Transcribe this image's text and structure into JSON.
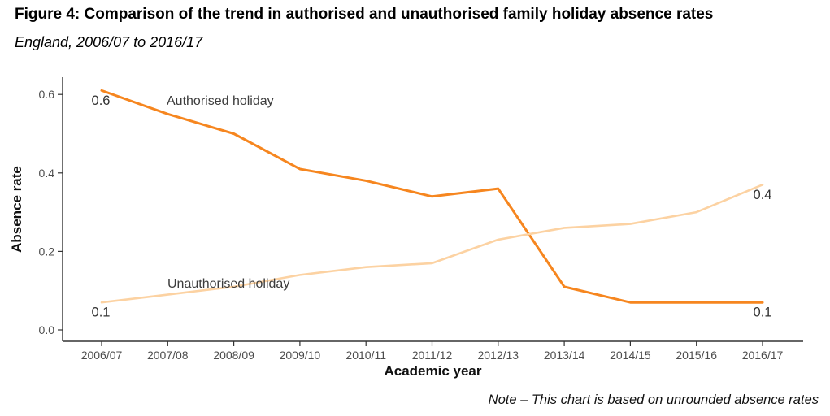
{
  "figure": {
    "title": "Figure 4: Comparison of the trend in authorised and unauthorised family holiday absence rates",
    "subtitle": "England, 2006/07 to 2016/17",
    "note": "Note – This chart is based on unrounded absence rates"
  },
  "chart_data": {
    "type": "line",
    "title": "Figure 4: Comparison of the trend in authorised and unauthorised family holiday absence rates",
    "subtitle": "England, 2006/07 to 2016/17",
    "xlabel": "Academic year",
    "ylabel": "Absence rate",
    "x_categories": [
      "2006/07",
      "2007/08",
      "2008/09",
      "2009/10",
      "2010/11",
      "2011/12",
      "2012/13",
      "2013/14",
      "2014/15",
      "2015/16",
      "2016/17"
    ],
    "series": [
      {
        "name": "Authorised holiday",
        "color": "#f6861f",
        "values": [
          0.61,
          0.55,
          0.5,
          0.41,
          0.38,
          0.34,
          0.36,
          0.11,
          0.07,
          0.07,
          0.07
        ],
        "first_point_label": "0.6",
        "last_point_label": "0.1"
      },
      {
        "name": "Unauthorised holiday",
        "color": "#fcd2a2",
        "values": [
          0.07,
          0.09,
          0.11,
          0.14,
          0.16,
          0.17,
          0.23,
          0.26,
          0.27,
          0.3,
          0.37
        ],
        "first_point_label": "0.1",
        "last_point_label": "0.4"
      }
    ],
    "y_ticks": [
      {
        "value": 0.0,
        "label": "0.0"
      },
      {
        "value": 0.2,
        "label": "0.2"
      },
      {
        "value": 0.4,
        "label": "0.4"
      },
      {
        "value": 0.6,
        "label": "0.6"
      }
    ],
    "ylim": [
      0,
      0.65
    ],
    "grid": false,
    "legend": "inline text annotations next to each line",
    "colors": {
      "axis": "#333333",
      "tick_label": "#4d4d4d",
      "annotation": "#333333"
    },
    "note": "Note – This chart is based on unrounded absence rates"
  }
}
